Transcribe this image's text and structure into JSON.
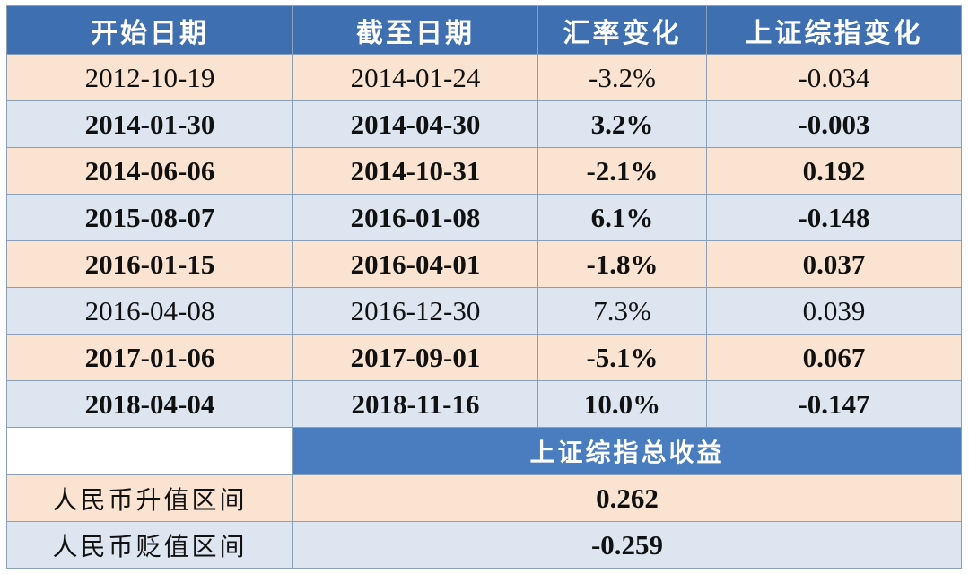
{
  "headers": {
    "start_date": "开始日期",
    "end_date": "截至日期",
    "fx_change": "汇率变化",
    "sse_change": "上证综指变化"
  },
  "rows": [
    {
      "start": "2012-10-19",
      "end": "2014-01-24",
      "fx": "-3.2%",
      "sse": "-0.034",
      "bold": false
    },
    {
      "start": "2014-01-30",
      "end": "2014-04-30",
      "fx": "3.2%",
      "sse": "-0.003",
      "bold": true
    },
    {
      "start": "2014-06-06",
      "end": "2014-10-31",
      "fx": "-2.1%",
      "sse": "0.192",
      "bold": true
    },
    {
      "start": "2015-08-07",
      "end": "2016-01-08",
      "fx": "6.1%",
      "sse": "-0.148",
      "bold": true
    },
    {
      "start": "2016-01-15",
      "end": "2016-04-01",
      "fx": "-1.8%",
      "sse": "0.037",
      "bold": true
    },
    {
      "start": "2016-04-08",
      "end": "2016-12-30",
      "fx": "7.3%",
      "sse": "0.039",
      "bold": false
    },
    {
      "start": "2017-01-06",
      "end": "2017-09-01",
      "fx": "-5.1%",
      "sse": "0.067",
      "bold": true
    },
    {
      "start": "2018-04-04",
      "end": "2018-11-16",
      "fx": "10.0%",
      "sse": "-0.147",
      "bold": true
    }
  ],
  "summary": {
    "header": "上证综指总收益",
    "appreciation_label": "人民币升值区间",
    "appreciation_value": "0.262",
    "depreciation_label": "人民币贬值区间",
    "depreciation_value": "-0.259"
  },
  "colors": {
    "header_bg": "#3e6fb0",
    "summary_header_bg": "#4a7cc0",
    "row_peach": "#fbe3d2",
    "row_blue": "#dce5f0"
  }
}
